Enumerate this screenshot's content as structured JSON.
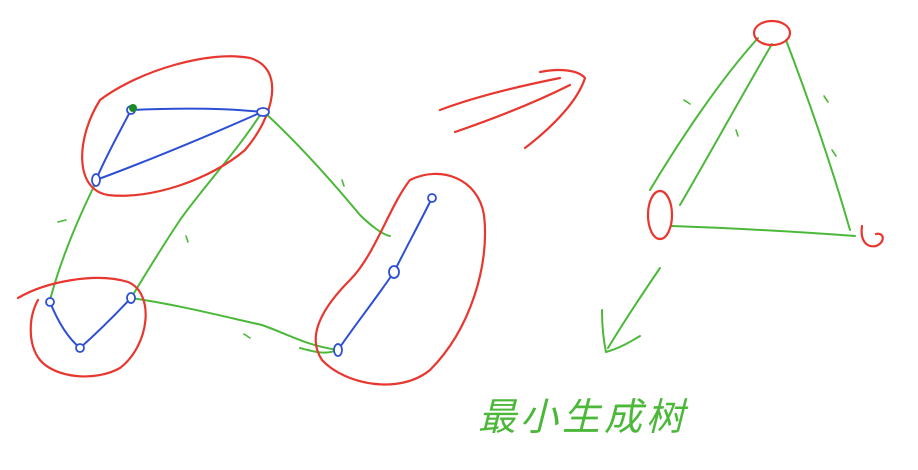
{
  "caption": "最小生成树",
  "colors": {
    "component_outline": "#e8372f",
    "intra_edges": "#2d4fd6",
    "inter_edges": "#4cb83a",
    "marked_node": "#1d8a2a"
  },
  "icons": [
    "arrow-right-icon",
    "arrow-down-left-icon"
  ]
}
